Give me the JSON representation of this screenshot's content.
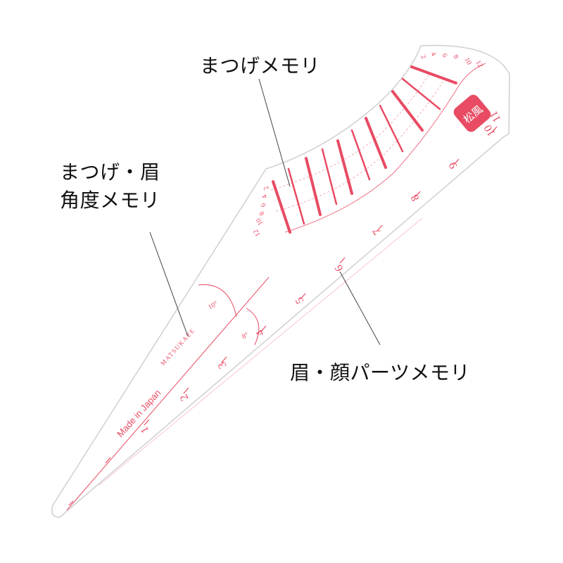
{
  "colors": {
    "accent": "#e84b63",
    "outline": "#cfcfcf",
    "text": "#111111"
  },
  "callouts": {
    "lash": "まつげメモリ",
    "angle_line1": "まつげ・眉",
    "angle_line2": "角度メモリ",
    "parts": "眉・顔パーツメモリ"
  },
  "ruler": {
    "made_in": "Made in Japan",
    "brand": "MATSUKAZE",
    "seal": "松風",
    "angle_10": "10°",
    "angle_8": "8°",
    "lower_scale": [
      "1",
      "2",
      "3",
      "4",
      "5"
    ],
    "upper_scale": [
      "6",
      "7",
      "8",
      "9",
      "10",
      "11"
    ],
    "arc_top_scale": [
      "2",
      "4",
      "6",
      "8",
      "10",
      "12"
    ],
    "arc_left_scale": [
      "2",
      "4",
      "6",
      "8",
      "10",
      "12"
    ]
  },
  "icons": {
    "seal": "seal-stamp-icon"
  }
}
